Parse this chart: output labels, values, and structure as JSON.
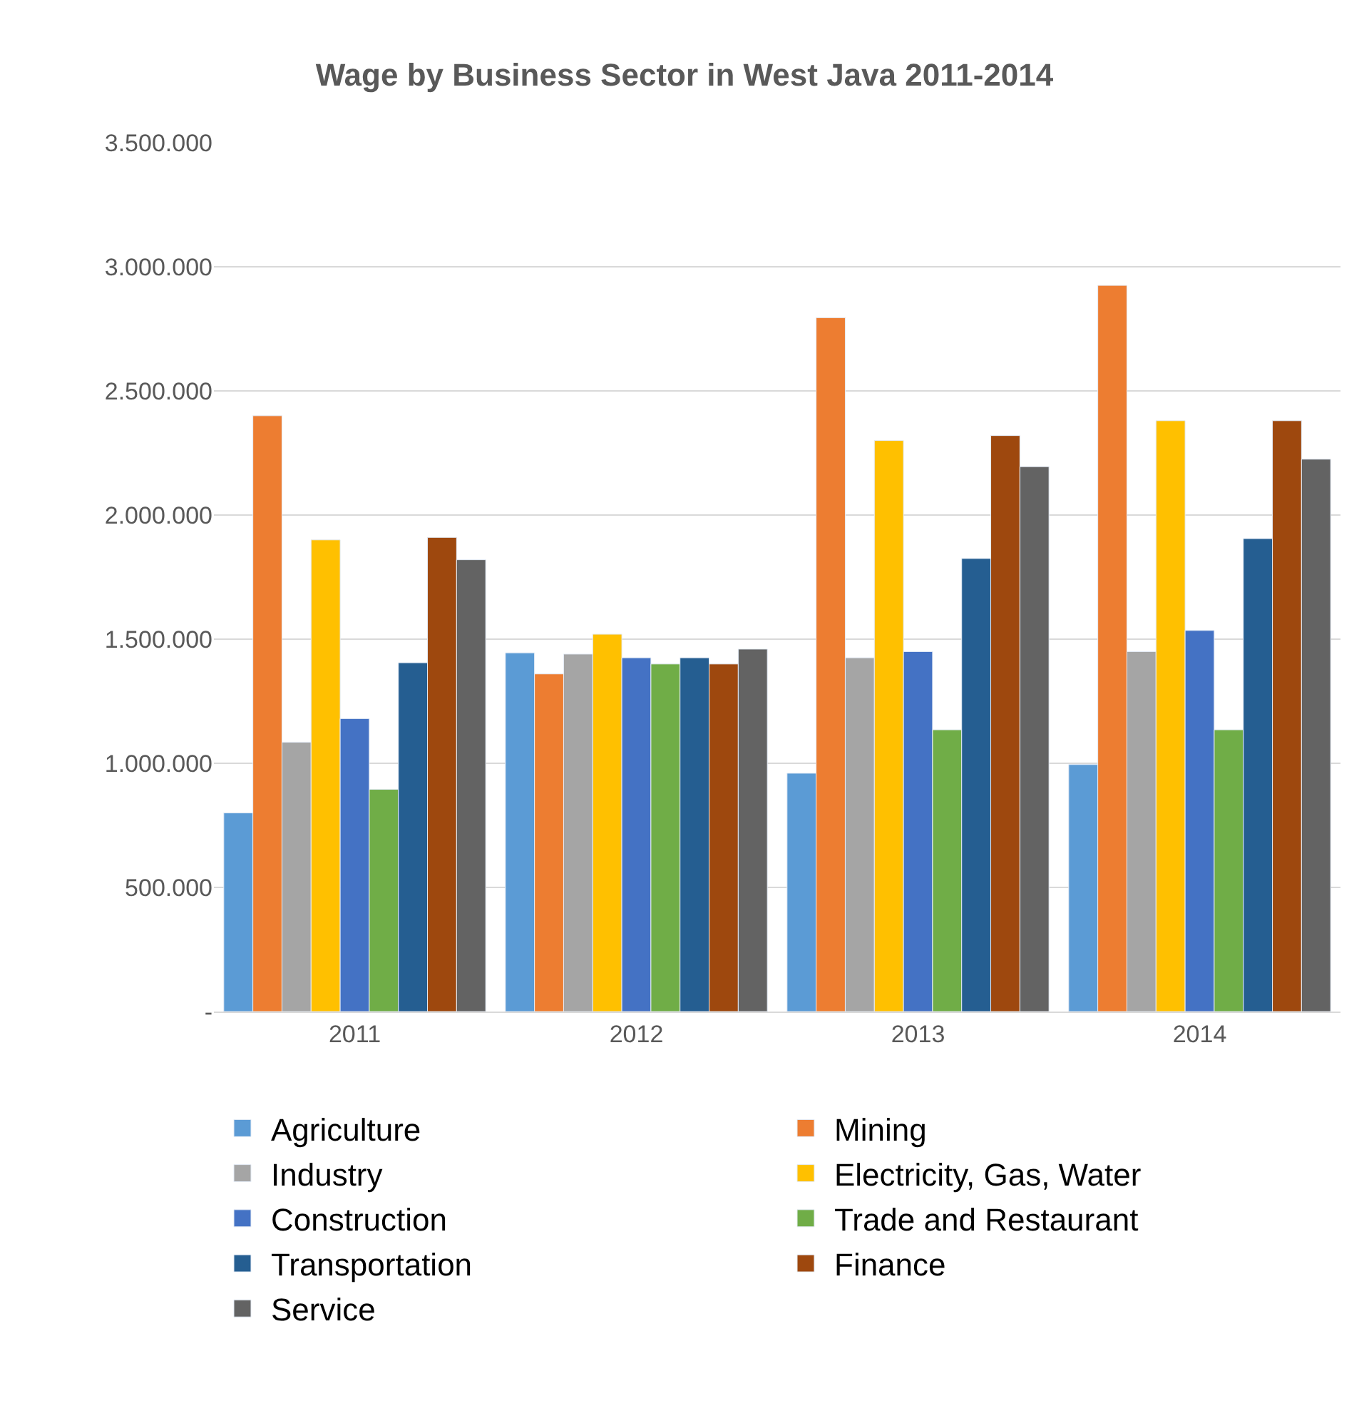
{
  "chart_data": {
    "type": "bar",
    "title": "Wage by Business Sector in West Java 2011-2014",
    "categories": [
      "2011",
      "2012",
      "2013",
      "2014"
    ],
    "series": [
      {
        "name": "Agriculture",
        "color": "#5b9bd5",
        "values": [
          800000,
          1445000,
          960000,
          995000
        ]
      },
      {
        "name": "Mining",
        "color": "#ed7d31",
        "values": [
          2400000,
          1360000,
          2795000,
          2925000
        ]
      },
      {
        "name": "Industry",
        "color": "#a5a5a5",
        "values": [
          1085000,
          1440000,
          1425000,
          1450000
        ]
      },
      {
        "name": "Electricity, Gas, Water",
        "color": "#ffc000",
        "values": [
          1900000,
          1520000,
          2300000,
          2380000
        ]
      },
      {
        "name": "Construction",
        "color": "#4472c4",
        "values": [
          1180000,
          1425000,
          1450000,
          1535000
        ]
      },
      {
        "name": "Trade and Restaurant",
        "color": "#70ad47",
        "values": [
          895000,
          1400000,
          1135000,
          1135000
        ]
      },
      {
        "name": "Transportation",
        "color": "#255e91",
        "values": [
          1405000,
          1425000,
          1825000,
          1905000
        ]
      },
      {
        "name": "Finance",
        "color": "#9e480e",
        "values": [
          1910000,
          1400000,
          2320000,
          2380000
        ]
      },
      {
        "name": "Service",
        "color": "#636363",
        "values": [
          1820000,
          1460000,
          2195000,
          2225000
        ]
      }
    ],
    "ylim": [
      0,
      3500000
    ],
    "yticks": [
      {
        "value": 0,
        "label": "-"
      },
      {
        "value": 500000,
        "label": "500.000"
      },
      {
        "value": 1000000,
        "label": "1.000.000"
      },
      {
        "value": 1500000,
        "label": "1.500.000"
      },
      {
        "value": 2000000,
        "label": "2.000.000"
      },
      {
        "value": 2500000,
        "label": "2.500.000"
      },
      {
        "value": 3000000,
        "label": "3.000.000"
      },
      {
        "value": 3500000,
        "label": "3.500.000"
      }
    ],
    "grid": "y",
    "legend": "bottom"
  }
}
